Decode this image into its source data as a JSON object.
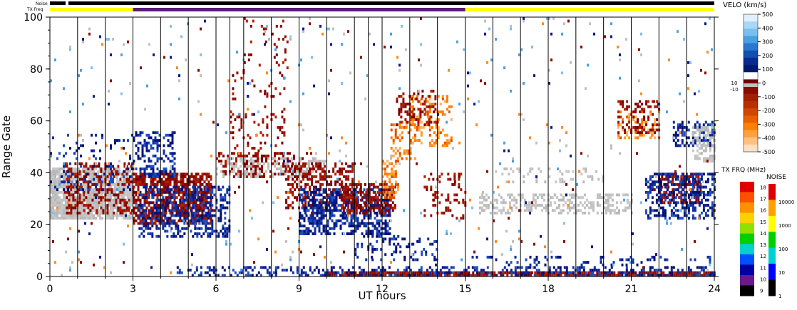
{
  "chart_data": {
    "type": "heatmap",
    "xlabel": "UT hours",
    "ylabel": "Range Gate",
    "xlim": [
      0,
      24
    ],
    "ylim": [
      0,
      100
    ],
    "x_ticks": [
      "0",
      "3",
      "6",
      "9",
      "12",
      "15",
      "18",
      "21",
      "24"
    ],
    "y_ticks": [
      "0",
      "20",
      "40",
      "60",
      "80",
      "100"
    ],
    "top_bars": {
      "noise_label": "Noise",
      "txfreq_label": "TX Freq",
      "txfreq_segments": [
        {
          "start": 0,
          "end": 3,
          "color": "#ffff00"
        },
        {
          "start": 3,
          "end": 15,
          "color": "#5a1a78"
        },
        {
          "start": 15,
          "end": 24,
          "color": "#ffff00"
        }
      ]
    },
    "velocity_scale": {
      "title": "VELO (km/s)",
      "labels": [
        "500",
        "400",
        "300",
        "200",
        "100",
        "0",
        "-100",
        "-200",
        "-300",
        "-400",
        "-500"
      ],
      "values": [
        500,
        400,
        300,
        200,
        100,
        0,
        -100,
        -200,
        -300,
        -400,
        -500
      ],
      "ground_scatter_labels": [
        "10",
        "-10"
      ]
    },
    "txfreq_scale": {
      "title": "TX FRQ (MHz)",
      "labels": [
        "18",
        "17",
        "16",
        "15",
        "14",
        "13",
        "12",
        "11",
        "10",
        "9"
      ],
      "colors": [
        "#e00000",
        "#ff5000",
        "#ff9000",
        "#ffd000",
        "#90e000",
        "#00d000",
        "#00d0d0",
        "#0050ff",
        "#0000a0",
        "#6a1a8a",
        "#000000"
      ]
    },
    "noise_scale": {
      "title": "NOISE",
      "labels": [
        "10000",
        "1000",
        "100",
        "10",
        "1"
      ],
      "colors": [
        "#e00000",
        "#ffa000",
        "#ffff00",
        "#00d000",
        "#00d0d0",
        "#0000ff",
        "#000000"
      ]
    },
    "regions": [
      {
        "kind": "ground",
        "x": [
          0,
          3
        ],
        "y": [
          22,
          42
        ],
        "density": 0.85
      },
      {
        "kind": "neg",
        "x": [
          0.5,
          3
        ],
        "y": [
          24,
          44
        ],
        "density": 0.35
      },
      {
        "kind": "pos",
        "x": [
          0,
          3
        ],
        "y": [
          33,
          55
        ],
        "density": 0.12
      },
      {
        "kind": "neg",
        "x": [
          3,
          5.8
        ],
        "y": [
          20,
          40
        ],
        "density": 0.7
      },
      {
        "kind": "pos",
        "x": [
          3.2,
          6.5
        ],
        "y": [
          15,
          35
        ],
        "density": 0.45
      },
      {
        "kind": "pos",
        "x": [
          3,
          4.5
        ],
        "y": [
          38,
          56
        ],
        "density": 0.35
      },
      {
        "kind": "neg",
        "x": [
          6,
          9.5
        ],
        "y": [
          38,
          48
        ],
        "density": 0.35
      },
      {
        "kind": "neg",
        "x": [
          6.5,
          8.5
        ],
        "y": [
          48,
          80
        ],
        "density": 0.12
      },
      {
        "kind": "neg",
        "x": [
          7,
          8.6
        ],
        "y": [
          80,
          100
        ],
        "density": 0.08
      },
      {
        "kind": "ground",
        "x": [
          6,
          10
        ],
        "y": [
          38,
          46
        ],
        "density": 0.3
      },
      {
        "kind": "neg",
        "x": [
          8.5,
          11
        ],
        "y": [
          26,
          44
        ],
        "density": 0.45
      },
      {
        "kind": "pos",
        "x": [
          9,
          12.3
        ],
        "y": [
          16,
          34
        ],
        "density": 0.55
      },
      {
        "kind": "neg",
        "x": [
          10.5,
          12.5
        ],
        "y": [
          24,
          36
        ],
        "density": 0.55
      },
      {
        "kind": "orange",
        "x": [
          12,
          12.6
        ],
        "y": [
          30,
          45
        ],
        "density": 0.5
      },
      {
        "kind": "orange",
        "x": [
          12.3,
          13.2
        ],
        "y": [
          45,
          60
        ],
        "density": 0.35
      },
      {
        "kind": "orange",
        "x": [
          13,
          14.5
        ],
        "y": [
          50,
          70
        ],
        "density": 0.3
      },
      {
        "kind": "neg",
        "x": [
          12.5,
          14
        ],
        "y": [
          58,
          72
        ],
        "density": 0.3
      },
      {
        "kind": "neg",
        "x": [
          13.5,
          15
        ],
        "y": [
          22,
          40
        ],
        "density": 0.2
      },
      {
        "kind": "pos",
        "x": [
          11,
          14
        ],
        "y": [
          6,
          16
        ],
        "density": 0.2
      },
      {
        "kind": "ground",
        "x": [
          15.5,
          21
        ],
        "y": [
          24,
          32
        ],
        "density": 0.4
      },
      {
        "kind": "ground",
        "x": [
          16,
          20
        ],
        "y": [
          36,
          42
        ],
        "density": 0.2
      },
      {
        "kind": "neg",
        "x": [
          22,
          23.5
        ],
        "y": [
          28,
          40
        ],
        "density": 0.5
      },
      {
        "kind": "pos",
        "x": [
          21.5,
          24
        ],
        "y": [
          22,
          40
        ],
        "density": 0.45
      },
      {
        "kind": "pos",
        "x": [
          22.5,
          24
        ],
        "y": [
          50,
          60
        ],
        "density": 0.4
      },
      {
        "kind": "ground",
        "x": [
          23.2,
          24
        ],
        "y": [
          44,
          58
        ],
        "density": 0.5
      },
      {
        "kind": "orange",
        "x": [
          20.5,
          22
        ],
        "y": [
          52,
          64
        ],
        "density": 0.3
      },
      {
        "kind": "neg",
        "x": [
          20.5,
          22
        ],
        "y": [
          55,
          68
        ],
        "density": 0.25
      },
      {
        "kind": "neg",
        "x": [
          10,
          24
        ],
        "y": [
          0,
          2
        ],
        "density": 0.9
      },
      {
        "kind": "pos",
        "x": [
          4.5,
          24
        ],
        "y": [
          0,
          4
        ],
        "density": 0.35
      },
      {
        "kind": "pos",
        "x": [
          15,
          24
        ],
        "y": [
          4,
          8
        ],
        "density": 0.12
      },
      {
        "kind": "scatter",
        "x": [
          0,
          24
        ],
        "y": [
          0,
          100
        ],
        "density": 0.015
      }
    ]
  }
}
